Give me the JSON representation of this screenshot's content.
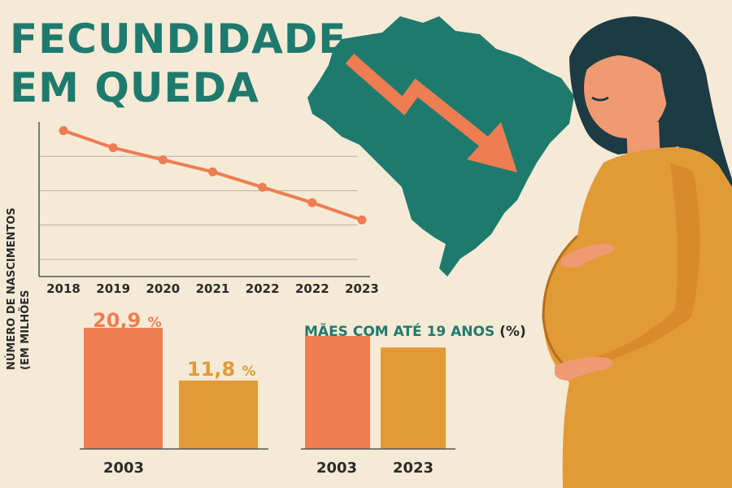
{
  "title": {
    "line1": "FECUNDIDADE",
    "line2": "EM QUEDA"
  },
  "colors": {
    "background": "#f5ead6",
    "teal": "#1f7a6e",
    "orange": "#ee7d52",
    "mustard": "#e29a36",
    "line": "#ee7d52"
  },
  "chart_data": [
    {
      "type": "line",
      "ylabel_line1": "NÚMERO DE NASCIMENTOS",
      "ylabel_line2": "(EM MILHÕES",
      "categories": [
        "2018",
        "2019",
        "2020",
        "2021",
        "2022",
        "2022",
        "2023"
      ],
      "values": [
        2.95,
        2.85,
        2.78,
        2.71,
        2.62,
        2.53,
        2.43
      ],
      "ylim": [
        2.1,
        3.0
      ],
      "grid": true
    },
    {
      "type": "bar",
      "categories": [
        "2003",
        ""
      ],
      "values": [
        20.9,
        11.8
      ],
      "labels": [
        "20,9",
        "11,8"
      ],
      "unit": "%",
      "ylim": [
        0,
        25
      ]
    },
    {
      "type": "bar",
      "title": "MÃES COM ATÉ 19 ANOS",
      "title_unit": "(%)",
      "categories": [
        "2003",
        "2023"
      ],
      "values": [
        19.5,
        17.5
      ],
      "ylim": [
        0,
        25
      ]
    }
  ],
  "icons": [
    "brazil-map-icon",
    "down-arrow-icon",
    "pregnant-woman-illustration"
  ]
}
